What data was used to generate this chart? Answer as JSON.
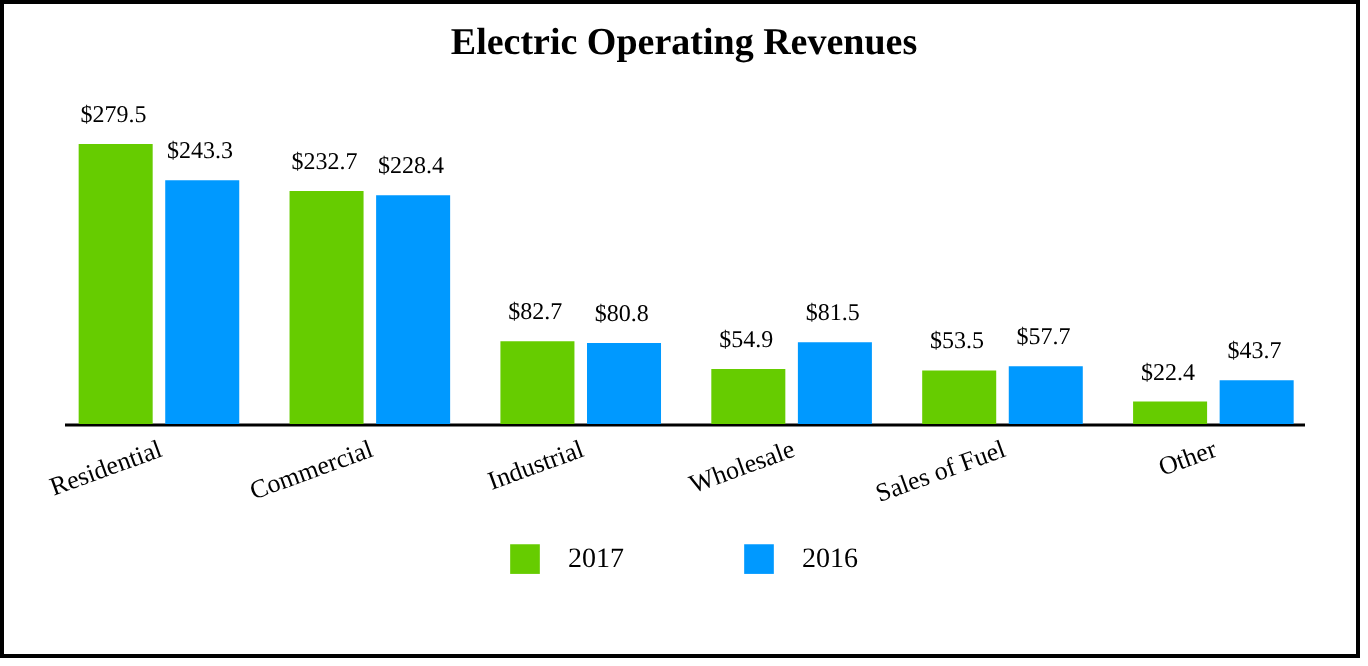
{
  "chart_data": {
    "type": "bar",
    "title": "Electric Operating Revenues",
    "categories": [
      "Residential",
      "Commercial",
      "Industrial",
      "Wholesale",
      "Sales of Fuel",
      "Other"
    ],
    "series": [
      {
        "name": "2017",
        "color": "#66cc00",
        "values": [
          279.5,
          232.7,
          82.7,
          54.9,
          53.5,
          22.4
        ],
        "value_labels": [
          "$279.5",
          "$232.7",
          "$82.7",
          "$54.9",
          "$53.5",
          "$22.4"
        ]
      },
      {
        "name": "2016",
        "color": "#0099ff",
        "values": [
          243.3,
          228.4,
          80.8,
          81.5,
          57.7,
          43.7
        ],
        "value_labels": [
          "$243.3",
          "$228.4",
          "$80.8",
          "$81.5",
          "$57.7",
          "$43.7"
        ]
      }
    ],
    "legend": "bottom",
    "tick_labels": "x"
  }
}
